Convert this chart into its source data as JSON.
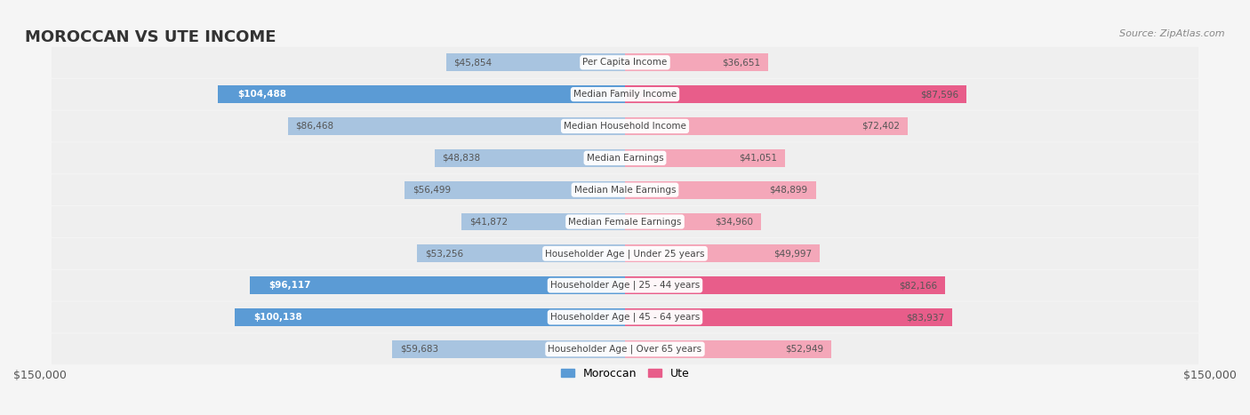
{
  "title": "MOROCCAN VS UTE INCOME",
  "source": "Source: ZipAtlas.com",
  "categories": [
    "Per Capita Income",
    "Median Family Income",
    "Median Household Income",
    "Median Earnings",
    "Median Male Earnings",
    "Median Female Earnings",
    "Householder Age | Under 25 years",
    "Householder Age | 25 - 44 years",
    "Householder Age | 45 - 64 years",
    "Householder Age | Over 65 years"
  ],
  "moroccan_values": [
    45854,
    104488,
    86468,
    48838,
    56499,
    41872,
    53256,
    96117,
    100138,
    59683
  ],
  "ute_values": [
    36651,
    87596,
    72402,
    41051,
    48899,
    34960,
    49997,
    82166,
    83937,
    52949
  ],
  "max_value": 150000,
  "moroccan_color_light": "#a8c4e0",
  "moroccan_color_dark": "#5b9bd5",
  "ute_color_light": "#f4a7b9",
  "ute_color_dark": "#e85d8a",
  "moroccan_threshold": 90000,
  "ute_threshold": 80000,
  "bg_color": "#f5f5f5",
  "row_bg": "#f0f0f0",
  "label_bg": "#ffffff",
  "bar_height": 0.55,
  "figsize": [
    14.06,
    4.67
  ],
  "dpi": 100,
  "x_axis_label_left": "$150,000",
  "x_axis_label_right": "$150,000"
}
